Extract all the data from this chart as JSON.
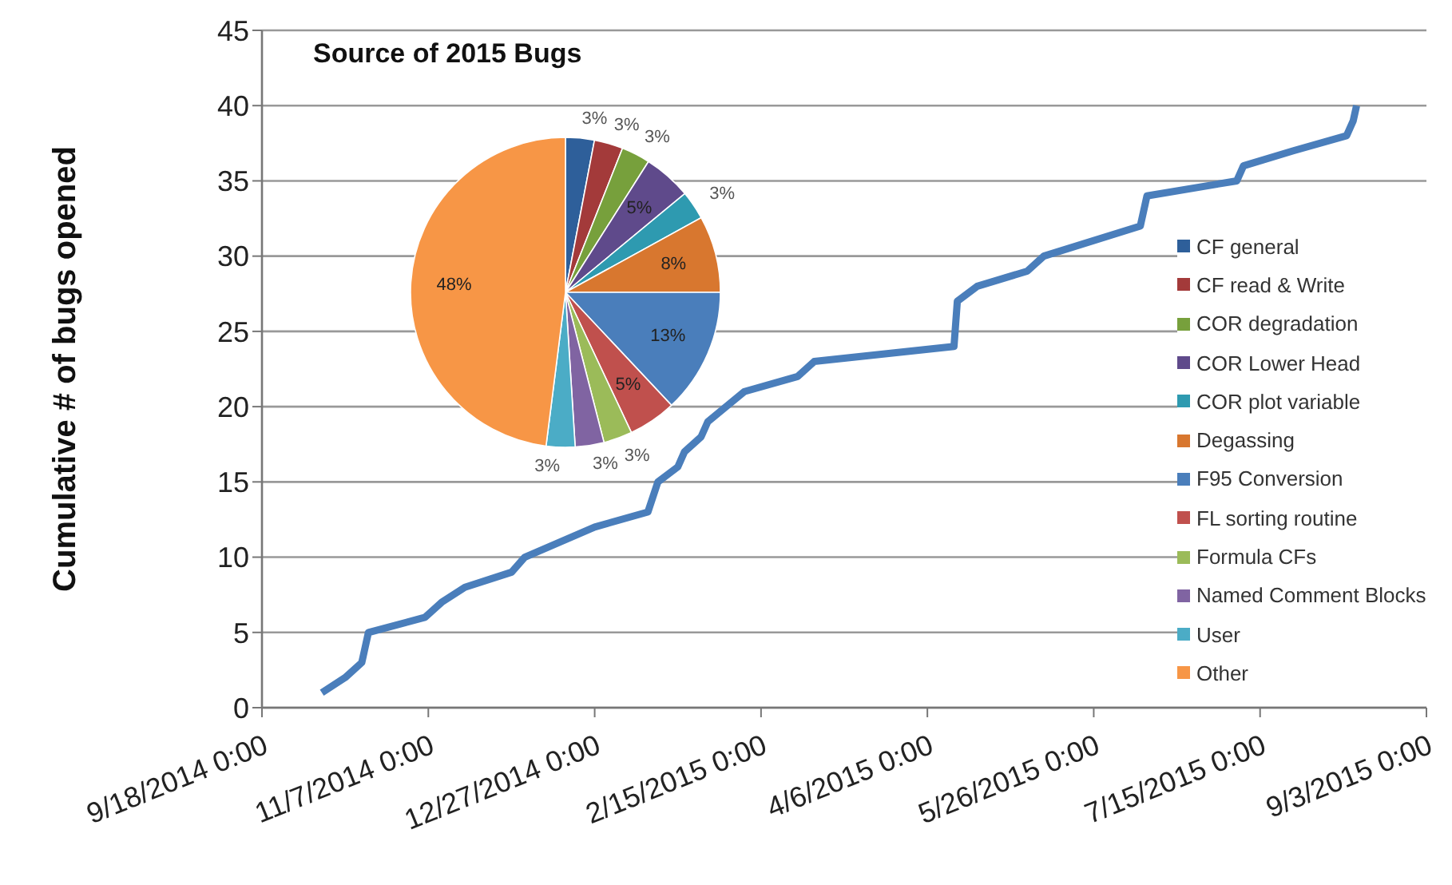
{
  "chart_data": [
    {
      "type": "line",
      "ylabel": "Cumulative # of bugs opened",
      "x": [
        "2014-10-06",
        "2014-10-13",
        "2014-10-18",
        "2014-10-19",
        "2014-10-20",
        "2014-11-06",
        "2014-11-11",
        "2014-11-18",
        "2014-12-02",
        "2014-12-06",
        "2014-12-27",
        "2015-01-12",
        "2015-01-15",
        "2015-01-21",
        "2015-01-23",
        "2015-01-28",
        "2015-01-30",
        "2015-02-10",
        "2015-02-26",
        "2015-03-03",
        "2015-04-14",
        "2015-04-15",
        "2015-04-21",
        "2015-05-06",
        "2015-05-11",
        "2015-06-09",
        "2015-06-11",
        "2015-07-08",
        "2015-07-10",
        "2015-07-25",
        "2015-08-10",
        "2015-08-12",
        "2015-08-13"
      ],
      "series": [
        {
          "color": "#4a7ebb",
          "values": [
            1,
            2,
            3,
            4,
            5,
            6,
            7,
            8,
            9,
            10,
            12,
            13,
            15,
            16,
            17,
            18,
            19,
            21,
            22,
            23,
            24,
            27,
            28,
            29,
            30,
            32,
            34,
            35,
            36,
            37,
            38,
            39,
            40
          ]
        }
      ],
      "xlim": [
        "2014-09-18",
        "2015-09-03"
      ],
      "xticks": [
        {
          "value": "2014-09-18",
          "label": "9/18/2014 0:00"
        },
        {
          "value": "2014-11-07",
          "label": "11/7/2014 0:00"
        },
        {
          "value": "2014-12-27",
          "label": "12/27/2014 0:00"
        },
        {
          "value": "2015-02-15",
          "label": "2/15/2015 0:00"
        },
        {
          "value": "2015-04-06",
          "label": "4/6/2015 0:00"
        },
        {
          "value": "2015-05-26",
          "label": "5/26/2015 0:00"
        },
        {
          "value": "2015-07-15",
          "label": "7/15/2015 0:00"
        },
        {
          "value": "2015-09-03",
          "label": "9/3/2015 0:00"
        }
      ],
      "ylim": [
        0,
        45
      ],
      "yticks": [
        0,
        5,
        10,
        15,
        20,
        25,
        30,
        35,
        40,
        45
      ],
      "grid": "y",
      "marker": "none",
      "line_style": "solid"
    },
    {
      "type": "pie",
      "title": "Source of 2015 Bugs",
      "categories": [
        "CF general",
        "CF read & Write",
        "COR degradation",
        "COR Lower Head",
        "COR plot variable",
        "Degassing",
        "F95 Conversion",
        "FL sorting routine",
        "Formula CFs",
        "Named Comment Blocks",
        "User",
        "Other"
      ],
      "values": [
        3,
        3,
        3,
        5,
        3,
        8,
        13,
        5,
        3,
        3,
        3,
        48
      ],
      "value_labels": [
        "3%",
        "3%",
        "3%",
        "5%",
        "3%",
        "8%",
        "13%",
        "5%",
        "3%",
        "3%",
        "3%",
        "48%"
      ],
      "colors": [
        "#2e5f9a",
        "#a33a3a",
        "#77a03c",
        "#5f4a8b",
        "#2e9ab0",
        "#d8772f",
        "#4a7ebb",
        "#c0504d",
        "#9bbb59",
        "#8064a2",
        "#4bacc6",
        "#f79646"
      ],
      "legend": "right"
    }
  ]
}
